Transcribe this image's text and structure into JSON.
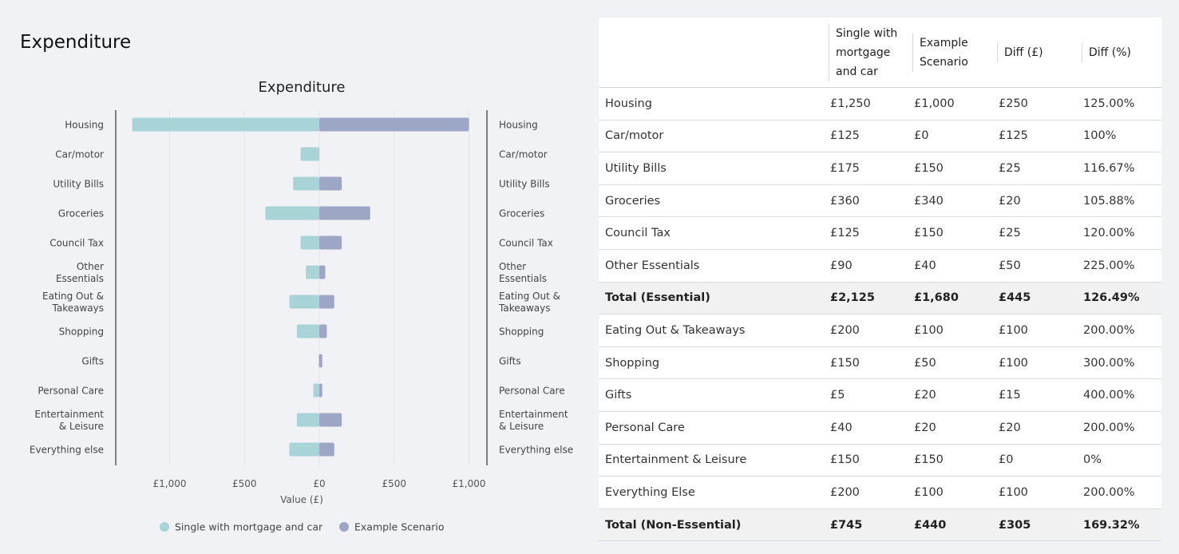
{
  "page": {
    "title": "Expenditure"
  },
  "chart_data": {
    "type": "bar",
    "title": "Expenditure",
    "xlabel": "Value (£)",
    "orientation": "horizontal-diverging",
    "categories": [
      "Housing",
      "Car/motor",
      "Utility Bills",
      "Groceries",
      "Council Tax",
      "Other Essentials",
      "Eating Out & Takeaways",
      "Shopping",
      "Gifts",
      "Personal Care",
      "Entertainment & Leisure",
      "Everything else"
    ],
    "category_lines": [
      [
        "Housing"
      ],
      [
        "Car/motor"
      ],
      [
        "Utility Bills"
      ],
      [
        "Groceries"
      ],
      [
        "Council Tax"
      ],
      [
        "Other",
        "Essentials"
      ],
      [
        "Eating Out &",
        "Takeaways"
      ],
      [
        "Shopping"
      ],
      [
        "Gifts"
      ],
      [
        "Personal Care"
      ],
      [
        "Entertainment",
        "& Leisure"
      ],
      [
        "Everything else"
      ]
    ],
    "series": [
      {
        "name": "Single with mortgage and car",
        "color": "#a8d3d7",
        "side": "left",
        "values": [
          1250,
          125,
          175,
          360,
          125,
          90,
          200,
          150,
          5,
          40,
          150,
          200
        ]
      },
      {
        "name": "Example Scenario",
        "color": "#9ea6c5",
        "side": "right",
        "values": [
          1000,
          0,
          150,
          340,
          150,
          40,
          100,
          50,
          20,
          20,
          150,
          100
        ]
      }
    ],
    "xticks": [
      "£1,000",
      "£500",
      "£0",
      "£500",
      "£1,000"
    ],
    "xlim": [
      -1000,
      1000
    ],
    "grid": true,
    "legend": "bottom"
  },
  "table": {
    "headers": [
      "",
      "Single with mortgage and car",
      "Example Scenario",
      "Diff (£)",
      "Diff (%)"
    ],
    "header_lines": [
      [],
      [
        "Single with",
        "mortgage",
        "and car"
      ],
      [
        "Example",
        "Scenario"
      ],
      [
        "Diff (£)"
      ],
      [
        "Diff (%)"
      ]
    ],
    "rows": [
      {
        "cells": [
          "Housing",
          "£1,250",
          "£1,000",
          "£250",
          "125.00%"
        ],
        "total": false
      },
      {
        "cells": [
          "Car/motor",
          "£125",
          "£0",
          "£125",
          "100%"
        ],
        "total": false
      },
      {
        "cells": [
          "Utility Bills",
          "£175",
          "£150",
          "£25",
          "116.67%"
        ],
        "total": false
      },
      {
        "cells": [
          "Groceries",
          "£360",
          "£340",
          "£20",
          "105.88%"
        ],
        "total": false
      },
      {
        "cells": [
          "Council Tax",
          "£125",
          "£150",
          "£25",
          "120.00%"
        ],
        "total": false
      },
      {
        "cells": [
          "Other Essentials",
          "£90",
          "£40",
          "£50",
          "225.00%"
        ],
        "total": false
      },
      {
        "cells": [
          "Total (Essential)",
          "£2,125",
          "£1,680",
          "£445",
          "126.49%"
        ],
        "total": true
      },
      {
        "cells": [
          "Eating Out & Takeaways",
          "£200",
          "£100",
          "£100",
          "200.00%"
        ],
        "total": false
      },
      {
        "cells": [
          "Shopping",
          "£150",
          "£50",
          "£100",
          "300.00%"
        ],
        "total": false
      },
      {
        "cells": [
          "Gifts",
          "£5",
          "£20",
          "£15",
          "400.00%"
        ],
        "total": false
      },
      {
        "cells": [
          "Personal Care",
          "£40",
          "£20",
          "£20",
          "200.00%"
        ],
        "total": false
      },
      {
        "cells": [
          "Entertainment & Leisure",
          "£150",
          "£150",
          "£0",
          "0%"
        ],
        "total": false
      },
      {
        "cells": [
          "Everything Else",
          "£200",
          "£100",
          "£100",
          "200.00%"
        ],
        "total": false
      },
      {
        "cells": [
          "Total (Non-Essential)",
          "£745",
          "£440",
          "£305",
          "169.32%"
        ],
        "total": true
      }
    ]
  }
}
